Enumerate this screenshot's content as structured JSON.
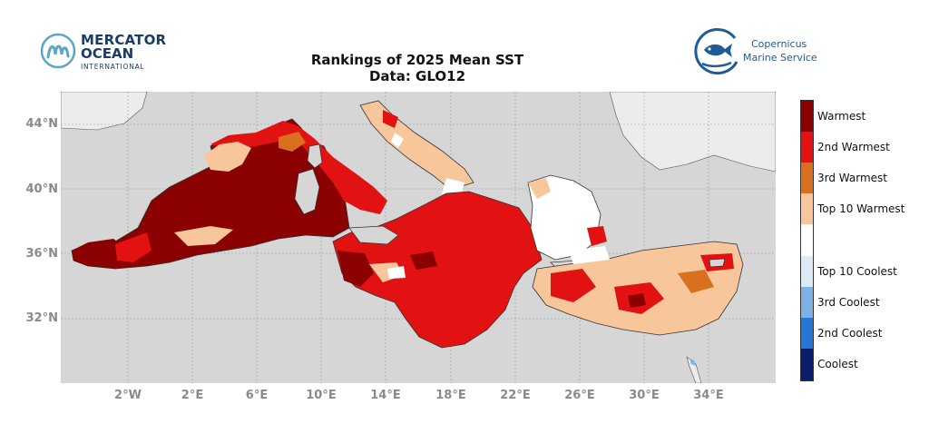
{
  "logos": {
    "mercator": {
      "line1": "MERCATOR",
      "line2": "OCEAN",
      "line3": "INTERNATIONAL"
    },
    "copernicus": {
      "line1": "Copernicus",
      "line2": "Marine Service"
    }
  },
  "title": {
    "line1": "Rankings of 2025 Mean SST",
    "line2": "Data: GLO12"
  },
  "map": {
    "region": "Mediterranean Sea",
    "lat_ticks": [
      "44°N",
      "40°N",
      "36°N",
      "32°N"
    ],
    "lon_ticks": [
      "2°W",
      "2°E",
      "6°E",
      "10°E",
      "14°E",
      "18°E",
      "22°E",
      "26°E",
      "30°E",
      "34°E"
    ],
    "colors": {
      "land": "#d6d6d6",
      "land_light": "#ececec",
      "grid": "#9a9a9a"
    }
  },
  "legend": {
    "categories": [
      {
        "label": "Warmest",
        "color": "#8b0000"
      },
      {
        "label": "2nd Warmest",
        "color": "#e31212"
      },
      {
        "label": "3rd Warmest",
        "color": "#d8701e"
      },
      {
        "label": "Top 10 Warmest",
        "color": "#f7c79b"
      },
      {
        "label": "",
        "color": "#ffffff"
      },
      {
        "label": "Top 10 Coolest",
        "color": "#deebf7"
      },
      {
        "label": "3rd Coolest",
        "color": "#7db3e3"
      },
      {
        "label": "2nd Coolest",
        "color": "#2676d4"
      },
      {
        "label": "Coolest",
        "color": "#0b1d6d"
      }
    ]
  }
}
